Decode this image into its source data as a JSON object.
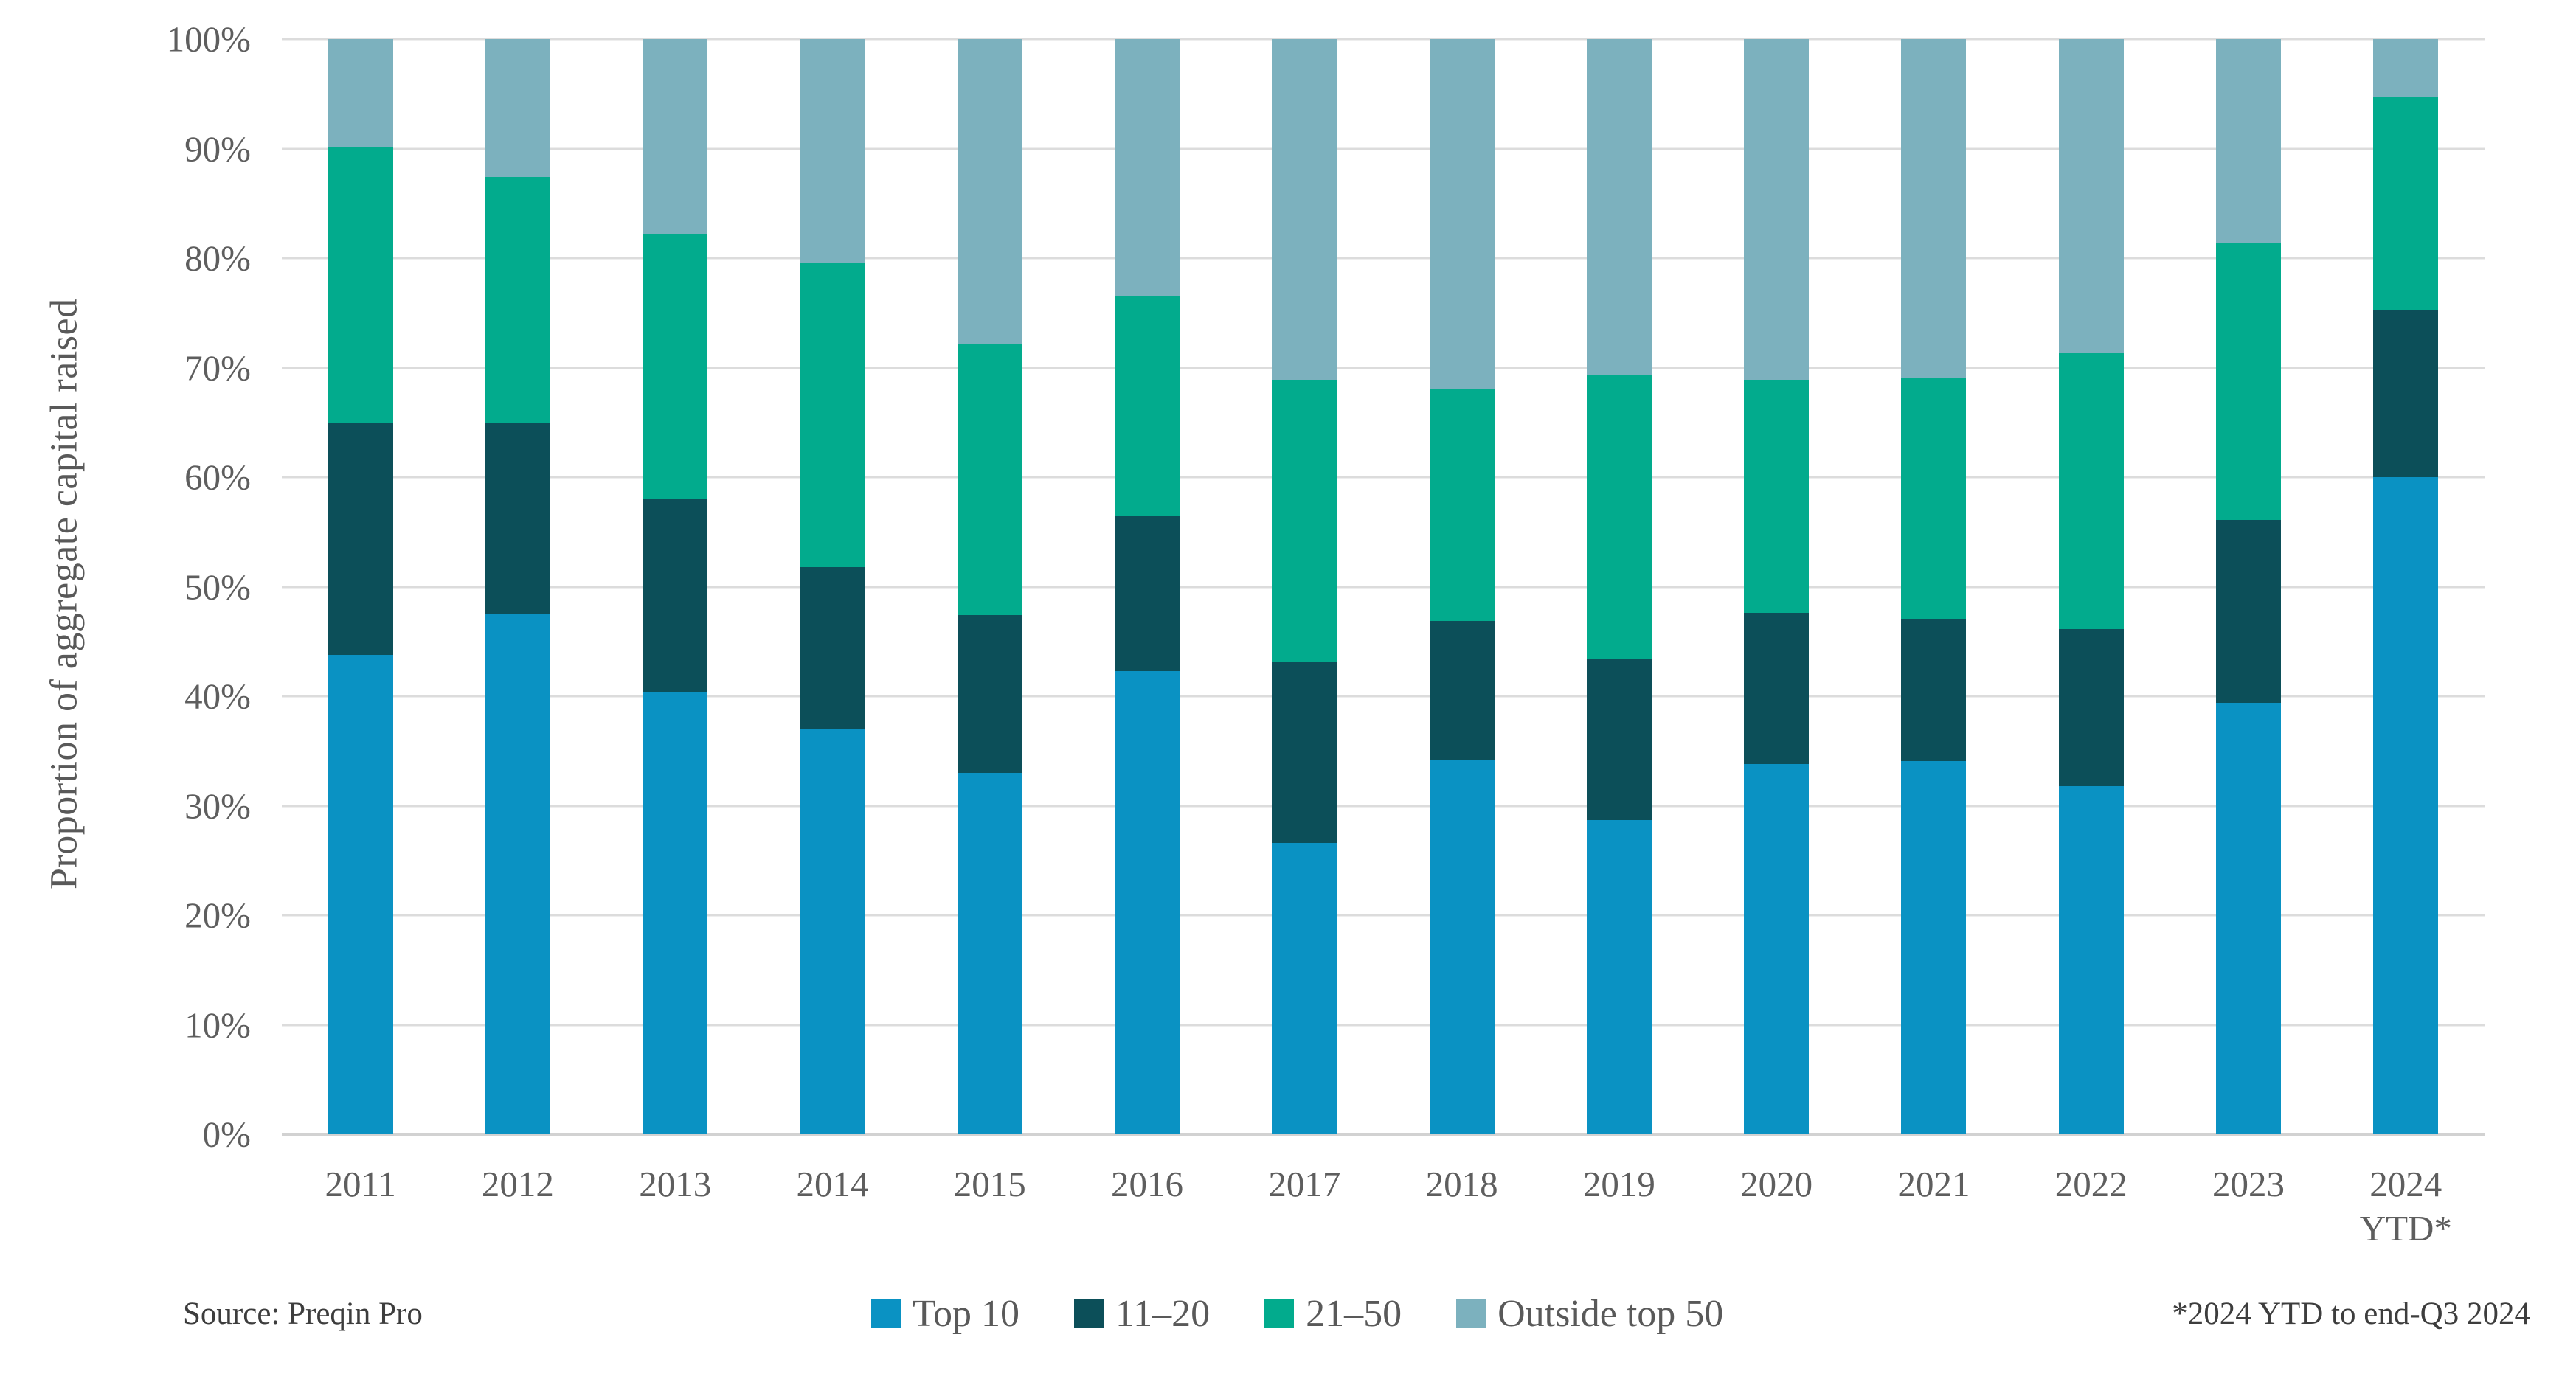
{
  "chart_data": {
    "type": "bar",
    "stacked": true,
    "ylabel": "Proportion of aggregate capital raised",
    "categories": [
      "2011",
      "2012",
      "2013",
      "2014",
      "2015",
      "2016",
      "2017",
      "2018",
      "2019",
      "2020",
      "2021",
      "2022",
      "2023",
      "2024\nYTD*"
    ],
    "series": [
      {
        "name": "Top 10",
        "color": "#0a92c3",
        "values": [
          43.8,
          47.5,
          40.4,
          37.0,
          33.0,
          42.3,
          26.6,
          34.2,
          28.7,
          33.8,
          34.1,
          31.8,
          39.4,
          60.0
        ]
      },
      {
        "name": "11–20",
        "color": "#0c4f59",
        "values": [
          21.2,
          17.5,
          17.6,
          14.8,
          14.4,
          14.1,
          16.5,
          12.7,
          14.7,
          13.8,
          13.0,
          14.3,
          16.7,
          15.3
        ]
      },
      {
        "name": "21–50",
        "color": "#02ab8d",
        "values": [
          25.1,
          22.4,
          24.2,
          27.7,
          24.7,
          20.2,
          25.8,
          21.1,
          25.9,
          21.3,
          22.0,
          25.3,
          25.3,
          19.4
        ]
      },
      {
        "name": "Outside top 50",
        "color": "#7cb1be",
        "values": [
          9.9,
          12.6,
          17.8,
          20.5,
          27.9,
          23.4,
          31.1,
          32.0,
          30.7,
          31.1,
          30.9,
          28.6,
          18.6,
          5.3
        ]
      }
    ],
    "ylim": [
      0,
      100
    ],
    "ytick_step": 10,
    "ytick_suffix": "%",
    "grid": true,
    "legend_position": "bottom"
  },
  "footer": {
    "source": "Source: Preqin Pro",
    "note": "*2024 YTD to end-Q3 2024"
  },
  "colors": {
    "grid": "#dcdcdc",
    "axis_baseline": "#d2d2d2",
    "axis_text": "#5e5e5e",
    "footer_text": "#3d3d3d"
  }
}
